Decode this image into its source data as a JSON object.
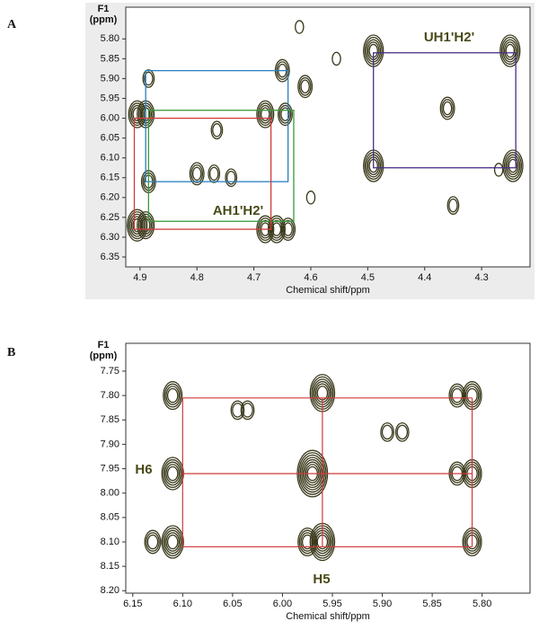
{
  "chart_data": [
    {
      "type": "nmr",
      "panel": "A",
      "xlabel": "Chemical shift/ppm",
      "ylabel": [
        "F1",
        "(ppm)"
      ],
      "xlim": [
        4.925,
        4.215
      ],
      "ylim": [
        5.72,
        6.375
      ],
      "xticks": [
        4.9,
        4.8,
        4.7,
        4.6,
        4.5,
        4.4,
        4.3
      ],
      "yticks": [
        {
          "value": 5.8,
          "label": "5.80"
        },
        5.85,
        {
          "value": 5.9,
          "label": "5.90"
        },
        5.95,
        {
          "value": 6.0,
          "label": "6.00"
        },
        6.05,
        {
          "value": 6.1,
          "label": "6.10"
        },
        6.15,
        {
          "value": 6.2,
          "label": "6.20"
        },
        6.25,
        {
          "value": 6.3,
          "label": "6.30"
        },
        6.35
      ],
      "peak_color": "#3b3a1c",
      "peaks": {
        "x": [
          4.905,
          4.89,
          4.905,
          4.89,
          4.885,
          4.885,
          4.68,
          4.66,
          4.64,
          4.68,
          4.645,
          4.65,
          4.61,
          4.765,
          4.8,
          4.77,
          4.74,
          4.6,
          4.49,
          4.25,
          4.49,
          4.245,
          4.36,
          4.35,
          4.555,
          4.62,
          4.27
        ],
        "y": [
          5.99,
          5.99,
          6.27,
          6.27,
          5.9,
          6.16,
          6.28,
          6.28,
          6.28,
          5.99,
          5.99,
          5.88,
          5.92,
          6.03,
          6.14,
          6.14,
          6.15,
          6.2,
          5.83,
          5.83,
          6.12,
          6.12,
          5.975,
          6.22,
          5.85,
          5.77,
          6.13
        ],
        "levels": [
          4,
          4,
          5,
          4,
          2,
          3,
          4,
          4,
          3,
          4,
          3,
          3,
          3,
          2,
          3,
          2,
          2,
          1,
          5,
          5,
          5,
          5,
          3,
          2,
          1,
          1,
          1
        ]
      },
      "boxes": [
        {
          "color": "#2a7fc0",
          "x": [
            4.89,
            4.64
          ],
          "y": [
            5.88,
            6.16
          ]
        },
        {
          "color": "#3a9a3a",
          "x": [
            4.885,
            4.63
          ],
          "y": [
            5.98,
            6.26
          ]
        },
        {
          "color": "#d03a3a",
          "x": [
            4.91,
            4.67
          ],
          "y": [
            6.0,
            6.28
          ]
        },
        {
          "color": "#4a2f8a",
          "x": [
            4.49,
            4.24
          ],
          "y": [
            5.835,
            6.125
          ]
        }
      ],
      "annotations": [
        "AH1'H2'",
        "UH1'H2'"
      ]
    },
    {
      "type": "nmr",
      "panel": "B",
      "xlabel": "Chemical shift/ppm",
      "ylabel": [
        "F1",
        "(ppm)"
      ],
      "xlim": [
        6.157,
        5.752
      ],
      "ylim": [
        7.693,
        8.205
      ],
      "xticks": [
        6.15,
        {
          "value": 6.1,
          "label": "6.10"
        },
        6.05,
        {
          "value": 6.0,
          "label": "6.00"
        },
        5.95,
        {
          "value": 5.9,
          "label": "5.90"
        },
        5.85,
        {
          "value": 5.8,
          "label": "5.80"
        }
      ],
      "yticks": [
        7.75,
        {
          "value": 7.8,
          "label": "7.80"
        },
        7.85,
        {
          "value": 7.9,
          "label": "7.90"
        },
        7.95,
        {
          "value": 8.0,
          "label": "8.00"
        },
        8.05,
        {
          "value": 8.1,
          "label": "8.10"
        },
        8.15,
        {
          "value": 8.2,
          "label": "8.20"
        }
      ],
      "peak_color": "#3b3a1c",
      "peaks": {
        "x": [
          6.11,
          6.11,
          6.11,
          6.13,
          5.96,
          5.97,
          5.96,
          5.975,
          5.81,
          5.825,
          5.81,
          5.825,
          5.81,
          6.045,
          6.035,
          5.895,
          5.88
        ],
        "y": [
          7.8,
          7.96,
          8.1,
          8.1,
          7.795,
          7.96,
          8.1,
          8.1,
          7.8,
          7.8,
          7.96,
          7.96,
          8.1,
          7.83,
          7.83,
          7.875,
          7.875
        ],
        "levels": [
          4,
          5,
          5,
          3,
          6,
          8,
          6,
          4,
          4,
          3,
          4,
          3,
          4,
          2,
          2,
          2,
          2
        ]
      },
      "grid_lines": {
        "color": "#d03a3a",
        "x": [
          6.1,
          5.96,
          5.81
        ],
        "y": [
          7.805,
          7.96,
          8.11
        ]
      },
      "annotations": [
        "H6",
        "H5"
      ]
    }
  ]
}
